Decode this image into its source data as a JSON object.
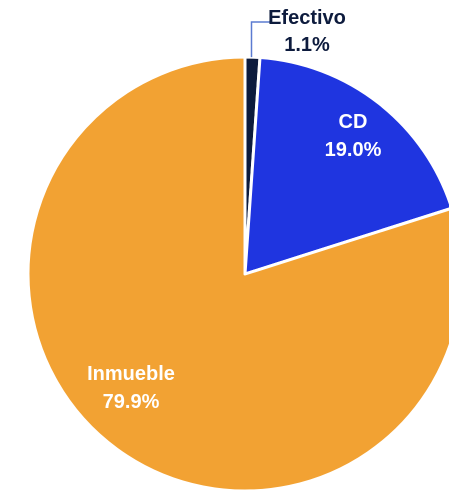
{
  "chart_data": {
    "type": "pie",
    "title": "",
    "slices": [
      {
        "name": "Efectivo",
        "value": 1.1,
        "label": "1.1%",
        "color": "#0d1b3d",
        "label_color": "#0d1b3d",
        "label_position": "outside-top"
      },
      {
        "name": "CD",
        "value": 19.0,
        "label": "19.0%",
        "color": "#1f35e0",
        "label_color": "#ffffff",
        "label_position": "inside"
      },
      {
        "name": "Inmueble",
        "value": 79.9,
        "label": "79.9%",
        "color": "#f2a233",
        "label_color": "#ffffff",
        "label_position": "inside"
      }
    ],
    "start_angle": "12 o'clock",
    "direction": "clockwise",
    "slice_border_color": "#ffffff",
    "legend": "none"
  }
}
